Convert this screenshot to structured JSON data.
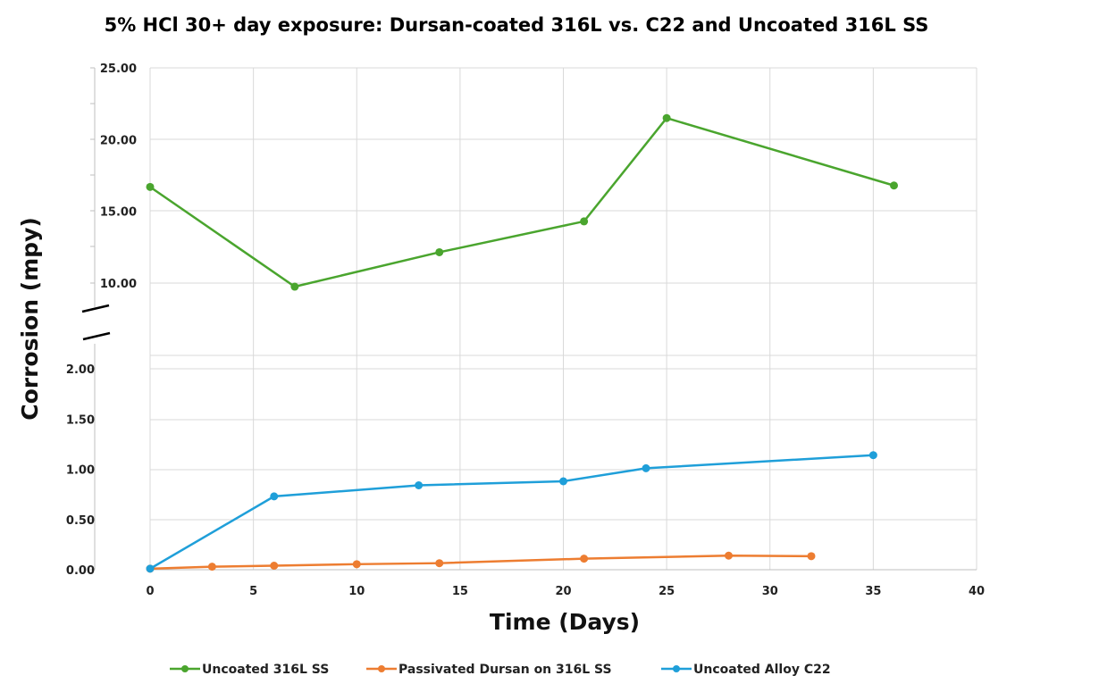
{
  "chart_data": {
    "type": "line",
    "title": "5% HCl 30+ day exposure: Dursan-coated 316L vs. C22 and Uncoated 316L SS",
    "xlabel": "Time (Days)",
    "ylabel": "Corrosion (mpy)",
    "xlim": [
      0,
      40
    ],
    "x_ticks": [
      "0",
      "5",
      "10",
      "15",
      "20",
      "25",
      "30",
      "35",
      "40"
    ],
    "y_axis_broken": true,
    "ylim_lower": [
      0,
      2
    ],
    "ylim_upper": [
      10,
      25
    ],
    "y_ticks_lower": [
      "0.00",
      "0.50",
      "1.00",
      "1.50",
      "2.00"
    ],
    "y_ticks_upper": [
      "10.00",
      "15.00",
      "20.00",
      "25.00"
    ],
    "grid": true,
    "legend_position": "bottom",
    "series": [
      {
        "name": "Uncoated 316L SS",
        "color": "#4aa52e",
        "x": [
          0,
          7,
          14,
          21,
          25,
          36
        ],
        "y": [
          16.7,
          9.75,
          12.15,
          14.3,
          21.5,
          16.8
        ]
      },
      {
        "name": "Passivated Dursan on 316L SS",
        "color": "#ed7d31",
        "x": [
          0,
          3,
          6,
          10,
          14,
          21,
          28,
          32
        ],
        "y": [
          0.01,
          0.03,
          0.04,
          0.055,
          0.065,
          0.11,
          0.14,
          0.135
        ]
      },
      {
        "name": "Uncoated Alloy C22",
        "color": "#1f9fd9",
        "x": [
          0,
          6,
          13,
          20,
          24,
          35
        ],
        "y": [
          0.01,
          0.73,
          0.84,
          0.88,
          1.01,
          1.14
        ]
      }
    ]
  }
}
